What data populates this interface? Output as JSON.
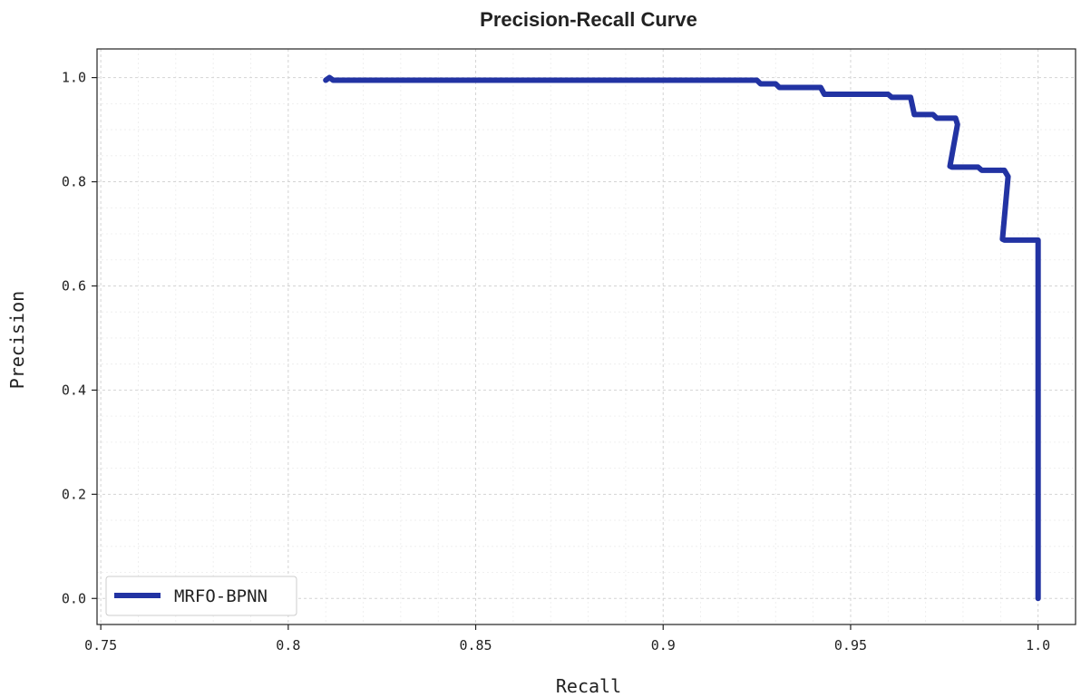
{
  "chart_data": {
    "type": "line",
    "title": "Precision-Recall Curve",
    "xlabel": "Recall",
    "ylabel": "Precision",
    "xlim": [
      0.749,
      1.01
    ],
    "ylim": [
      -0.05,
      1.055
    ],
    "xticks": [
      0.75,
      0.8,
      0.85,
      0.9,
      0.95,
      1.0
    ],
    "xtick_labels": [
      "0.75",
      "0.8",
      "0.85",
      "0.9",
      "0.95",
      "1.0"
    ],
    "yticks": [
      0.0,
      0.2,
      0.4,
      0.6,
      0.8,
      1.0
    ],
    "ytick_labels": [
      "0.0",
      "0.2",
      "0.4",
      "0.6",
      "0.8",
      "1.0"
    ],
    "grid": true,
    "legend_position": "lower-left",
    "series": [
      {
        "name": "MRFO-BPNN",
        "color": "#2233a3",
        "x": [
          0.81,
          0.811,
          0.812,
          0.925,
          0.926,
          0.93,
          0.931,
          0.942,
          0.943,
          0.96,
          0.961,
          0.966,
          0.967,
          0.972,
          0.973,
          0.978,
          0.9785,
          0.9765,
          0.977,
          0.984,
          0.985,
          0.991,
          0.992,
          0.9905,
          0.991,
          1.0,
          1.0
        ],
        "y": [
          0.995,
          1.0,
          0.995,
          0.995,
          0.988,
          0.988,
          0.981,
          0.981,
          0.968,
          0.968,
          0.962,
          0.962,
          0.929,
          0.929,
          0.922,
          0.922,
          0.91,
          0.83,
          0.828,
          0.828,
          0.822,
          0.822,
          0.81,
          0.69,
          0.688,
          0.688,
          0.0
        ]
      }
    ]
  }
}
